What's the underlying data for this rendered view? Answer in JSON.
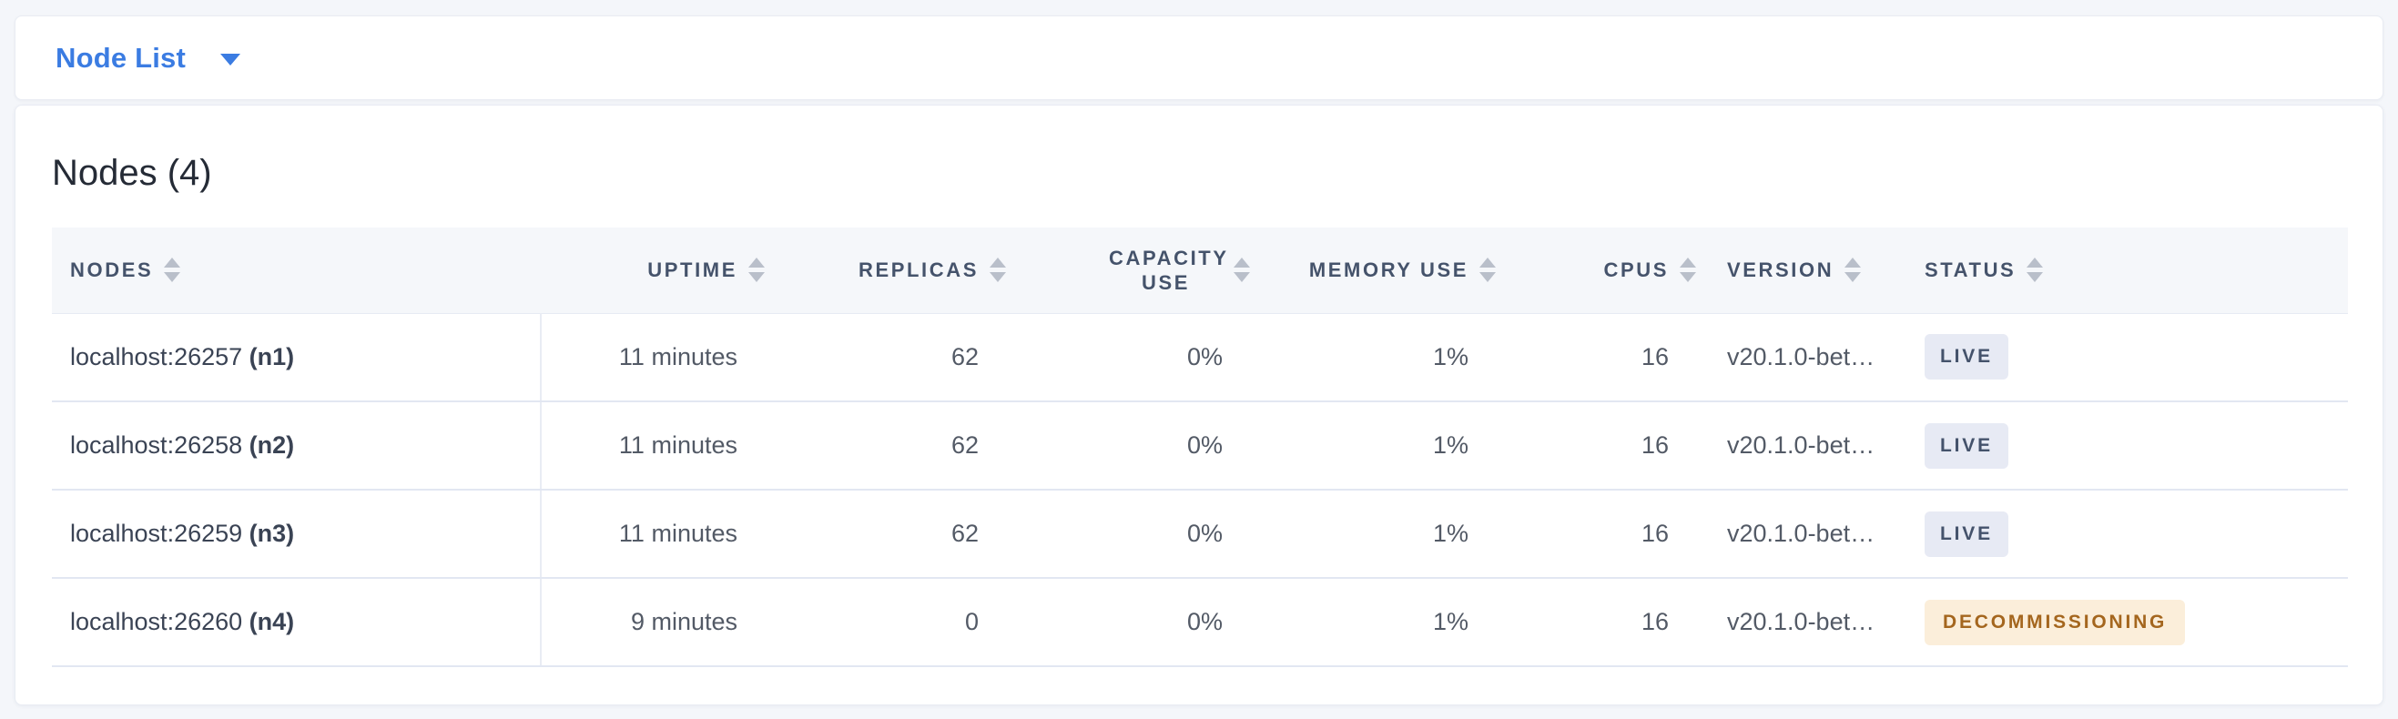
{
  "colors": {
    "accent_blue": "#3b7ce2",
    "page_background": "#f4f6fa",
    "live_badge_bg": "#e7eaf4",
    "live_badge_text": "#44526b",
    "decommissioning_badge_bg": "#fbeeda",
    "decommissioning_badge_text": "#a4661e"
  },
  "toolbar": {
    "view_selector_label": "Node List"
  },
  "panel": {
    "title": "Nodes (4)"
  },
  "table": {
    "columns": [
      {
        "key": "nodes",
        "label": "NODES",
        "align": "left"
      },
      {
        "key": "uptime",
        "label": "UPTIME",
        "align": "right"
      },
      {
        "key": "replicas",
        "label": "REPLICAS",
        "align": "right"
      },
      {
        "key": "capacity_use",
        "label": "CAPACITY USE",
        "align": "right"
      },
      {
        "key": "memory_use",
        "label": "MEMORY USE",
        "align": "right"
      },
      {
        "key": "cpus",
        "label": "CPUS",
        "align": "right"
      },
      {
        "key": "version",
        "label": "VERSION",
        "align": "left"
      },
      {
        "key": "status",
        "label": "STATUS",
        "align": "left"
      }
    ],
    "rows": [
      {
        "nodes": {
          "address": "localhost:26257",
          "id": "(n1)"
        },
        "uptime": "11 minutes",
        "replicas": "62",
        "capacity_use": "0%",
        "memory_use": "1%",
        "cpus": "16",
        "version": "v20.1.0-bet…",
        "status": {
          "label": "LIVE",
          "type": "live"
        }
      },
      {
        "nodes": {
          "address": "localhost:26258",
          "id": "(n2)"
        },
        "uptime": "11 minutes",
        "replicas": "62",
        "capacity_use": "0%",
        "memory_use": "1%",
        "cpus": "16",
        "version": "v20.1.0-bet…",
        "status": {
          "label": "LIVE",
          "type": "live"
        }
      },
      {
        "nodes": {
          "address": "localhost:26259",
          "id": "(n3)"
        },
        "uptime": "11 minutes",
        "replicas": "62",
        "capacity_use": "0%",
        "memory_use": "1%",
        "cpus": "16",
        "version": "v20.1.0-bet…",
        "status": {
          "label": "LIVE",
          "type": "live"
        }
      },
      {
        "nodes": {
          "address": "localhost:26260",
          "id": "(n4)"
        },
        "uptime": "9 minutes",
        "replicas": "0",
        "capacity_use": "0%",
        "memory_use": "1%",
        "cpus": "16",
        "version": "v20.1.0-bet…",
        "status": {
          "label": "DECOMMISSIONING",
          "type": "decommissioning"
        }
      }
    ]
  }
}
